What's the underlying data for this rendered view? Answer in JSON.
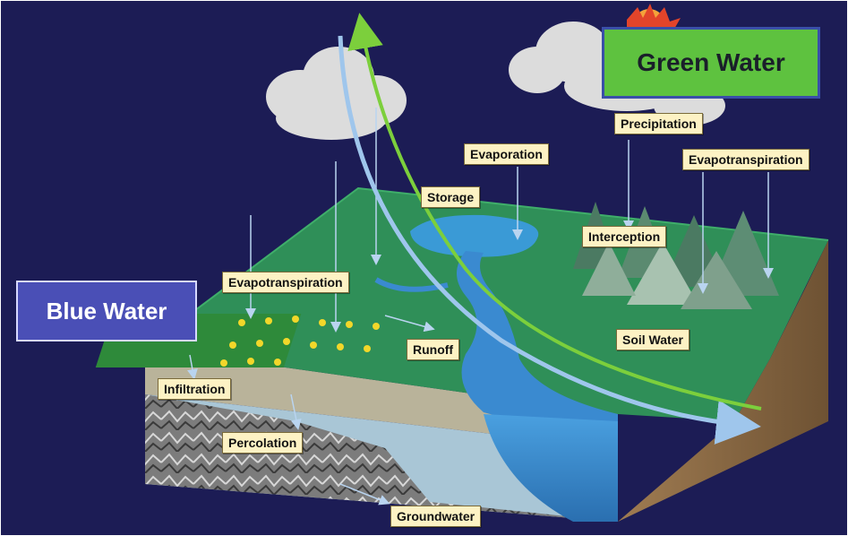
{
  "titles": {
    "blue_water": "Blue Water",
    "green_water": "Green Water"
  },
  "labels": {
    "evaporation": "Evaporation",
    "precipitation": "Precipitation",
    "evapotranspiration_right": "Evapotranspiration",
    "storage": "Storage",
    "interception": "Interception",
    "evapotranspiration_left": "Evapotranspiration",
    "runoff": "Runoff",
    "soil_water": "Soil Water",
    "infiltration": "Infiltration",
    "percolation": "Percolation",
    "groundwater": "Groundwater"
  },
  "colors": {
    "sky": "#1c1c55",
    "land_top": "#2f8f58",
    "soil": "#b9b39a",
    "rock": "#8a8a8a",
    "water": "#3f8fd0",
    "cliff": "#8a6a45",
    "green_arrow": "#7ccf3c",
    "blue_arrow": "#9fc6ec",
    "label_bg": "#fdf2c4"
  }
}
